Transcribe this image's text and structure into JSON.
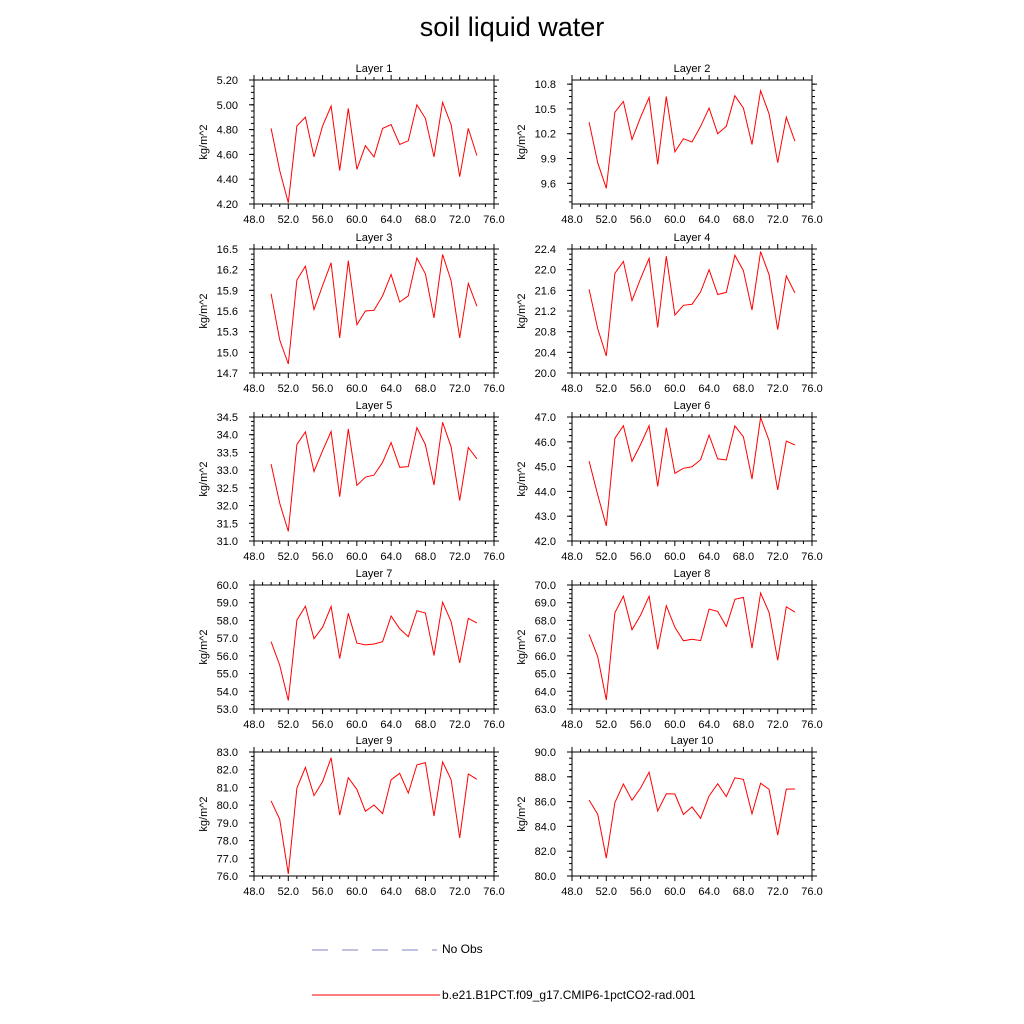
{
  "title": "soil liquid water",
  "legend": [
    {
      "label": "No Obs",
      "color": "#8080c0",
      "style": "dashed"
    },
    {
      "label": "b.e21.B1PCT.f09_g17.CMIP6-1pctCO2-rad.001",
      "color": "#ff0000",
      "style": "solid"
    }
  ],
  "chart_data": [
    {
      "type": "line",
      "title": "Layer 1",
      "ylabel": "kg/m^2",
      "xlim": [
        48,
        76
      ],
      "xticks": [
        "48.0",
        "52.0",
        "56.0",
        "60.0",
        "64.0",
        "68.0",
        "72.0",
        "76.0"
      ],
      "ylim": [
        4.2,
        5.2
      ],
      "yticks": [
        "4.20",
        "4.40",
        "4.60",
        "4.80",
        "5.00",
        "5.20"
      ],
      "x": [
        50,
        51,
        52,
        53,
        54,
        55,
        56,
        57,
        58,
        59,
        60,
        61,
        62,
        63,
        64,
        65,
        66,
        67,
        68,
        69,
        70,
        71,
        72,
        73,
        74
      ],
      "series": [
        {
          "name": "b.e21.B1PCT.f09_g17.CMIP6-1pctCO2-rad.001",
          "values": [
            4.81,
            4.47,
            4.21,
            4.83,
            4.9,
            4.58,
            4.83,
            4.99,
            4.47,
            4.97,
            4.48,
            4.67,
            4.58,
            4.81,
            4.84,
            4.68,
            4.71,
            5.0,
            4.89,
            4.58,
            5.02,
            4.84,
            4.42,
            4.81,
            4.59
          ]
        }
      ]
    },
    {
      "type": "line",
      "title": "Layer 2",
      "ylabel": "kg/m^2",
      "xlim": [
        48,
        76
      ],
      "xticks": [
        "48.0",
        "52.0",
        "56.0",
        "60.0",
        "64.0",
        "68.0",
        "72.0",
        "76.0"
      ],
      "ylim": [
        9.35,
        10.85
      ],
      "yticks": [
        "9.6",
        "9.9",
        "10.2",
        "10.5",
        "10.8"
      ],
      "x": [
        50,
        51,
        52,
        53,
        54,
        55,
        56,
        57,
        58,
        59,
        60,
        61,
        62,
        63,
        64,
        65,
        66,
        67,
        68,
        69,
        70,
        71,
        72,
        73,
        74
      ],
      "series": [
        {
          "name": "b.e21.B1PCT.f09_g17.CMIP6-1pctCO2-rad.001",
          "values": [
            10.34,
            9.85,
            9.54,
            10.46,
            10.59,
            10.13,
            10.4,
            10.64,
            9.83,
            10.65,
            9.98,
            10.14,
            10.1,
            10.29,
            10.51,
            10.2,
            10.29,
            10.66,
            10.51,
            10.07,
            10.72,
            10.44,
            9.85,
            10.4,
            10.11
          ]
        }
      ]
    },
    {
      "type": "line",
      "title": "Layer 3",
      "ylabel": "kg/m^2",
      "xlim": [
        48,
        76
      ],
      "xticks": [
        "48.0",
        "52.0",
        "56.0",
        "60.0",
        "64.0",
        "68.0",
        "72.0",
        "76.0"
      ],
      "ylim": [
        14.7,
        16.5
      ],
      "yticks": [
        "14.7",
        "15.0",
        "15.3",
        "15.6",
        "15.9",
        "16.2",
        "16.5"
      ],
      "x": [
        50,
        51,
        52,
        53,
        54,
        55,
        56,
        57,
        58,
        59,
        60,
        61,
        62,
        63,
        64,
        65,
        66,
        67,
        68,
        69,
        70,
        71,
        72,
        73,
        74
      ],
      "series": [
        {
          "name": "b.e21.B1PCT.f09_g17.CMIP6-1pctCO2-rad.001",
          "values": [
            15.85,
            15.18,
            14.83,
            16.05,
            16.25,
            15.62,
            15.97,
            16.3,
            15.21,
            16.33,
            15.4,
            15.6,
            15.61,
            15.82,
            16.13,
            15.73,
            15.82,
            16.37,
            16.14,
            15.5,
            16.42,
            16.04,
            15.21,
            16.0,
            15.67
          ]
        }
      ]
    },
    {
      "type": "line",
      "title": "Layer 4",
      "ylabel": "kg/m^2",
      "xlim": [
        48,
        76
      ],
      "xticks": [
        "48.0",
        "52.0",
        "56.0",
        "60.0",
        "64.0",
        "68.0",
        "72.0",
        "76.0"
      ],
      "ylim": [
        20.0,
        22.4
      ],
      "yticks": [
        "20.0",
        "20.4",
        "20.8",
        "21.2",
        "21.6",
        "22.0",
        "22.4"
      ],
      "x": [
        50,
        51,
        52,
        53,
        54,
        55,
        56,
        57,
        58,
        59,
        60,
        61,
        62,
        63,
        64,
        65,
        66,
        67,
        68,
        69,
        70,
        71,
        72,
        73,
        74
      ],
      "series": [
        {
          "name": "b.e21.B1PCT.f09_g17.CMIP6-1pctCO2-rad.001",
          "values": [
            21.62,
            20.86,
            20.33,
            21.93,
            22.16,
            21.4,
            21.83,
            22.22,
            20.88,
            22.26,
            21.12,
            21.31,
            21.33,
            21.57,
            22.0,
            21.52,
            21.56,
            22.28,
            21.98,
            21.22,
            22.35,
            21.9,
            20.84,
            21.88,
            21.55
          ]
        }
      ]
    },
    {
      "type": "line",
      "title": "Layer 5",
      "ylabel": "kg/m^2",
      "xlim": [
        48,
        76
      ],
      "xticks": [
        "48.0",
        "52.0",
        "56.0",
        "60.0",
        "64.0",
        "68.0",
        "72.0",
        "76.0"
      ],
      "ylim": [
        31.0,
        34.5
      ],
      "yticks": [
        "31.0",
        "31.5",
        "32.0",
        "32.5",
        "33.0",
        "33.5",
        "34.0",
        "34.5"
      ],
      "x": [
        50,
        51,
        52,
        53,
        54,
        55,
        56,
        57,
        58,
        59,
        60,
        61,
        62,
        63,
        64,
        65,
        66,
        67,
        68,
        69,
        70,
        71,
        72,
        73,
        74
      ],
      "series": [
        {
          "name": "b.e21.B1PCT.f09_g17.CMIP6-1pctCO2-rad.001",
          "values": [
            33.17,
            32.07,
            31.27,
            33.72,
            34.08,
            32.96,
            33.55,
            34.09,
            32.25,
            34.16,
            32.57,
            32.8,
            32.86,
            33.22,
            33.78,
            33.08,
            33.1,
            34.2,
            33.72,
            32.58,
            34.35,
            33.66,
            32.14,
            33.64,
            33.32
          ]
        }
      ]
    },
    {
      "type": "line",
      "title": "Layer 6",
      "ylabel": "kg/m^2",
      "xlim": [
        48,
        76
      ],
      "xticks": [
        "48.0",
        "52.0",
        "56.0",
        "60.0",
        "64.0",
        "68.0",
        "72.0",
        "76.0"
      ],
      "ylim": [
        42.0,
        47.0
      ],
      "yticks": [
        "42.0",
        "43.0",
        "44.0",
        "45.0",
        "46.0",
        "47.0"
      ],
      "x": [
        50,
        51,
        52,
        53,
        54,
        55,
        56,
        57,
        58,
        59,
        60,
        61,
        62,
        63,
        64,
        65,
        66,
        67,
        68,
        69,
        70,
        71,
        72,
        73,
        74
      ],
      "series": [
        {
          "name": "b.e21.B1PCT.f09_g17.CMIP6-1pctCO2-rad.001",
          "values": [
            45.22,
            43.86,
            42.61,
            46.14,
            46.65,
            45.21,
            45.89,
            46.65,
            44.2,
            46.57,
            44.73,
            44.93,
            44.99,
            45.28,
            46.27,
            45.31,
            45.27,
            46.64,
            46.2,
            44.5,
            46.98,
            46.05,
            44.06,
            46.03,
            45.87
          ]
        }
      ]
    },
    {
      "type": "line",
      "title": "Layer 7",
      "ylabel": "kg/m^2",
      "xlim": [
        48,
        76
      ],
      "xticks": [
        "48.0",
        "52.0",
        "56.0",
        "60.0",
        "64.0",
        "68.0",
        "72.0",
        "76.0"
      ],
      "ylim": [
        53.0,
        60.0
      ],
      "yticks": [
        "53.0",
        "54.0",
        "55.0",
        "56.0",
        "57.0",
        "58.0",
        "59.0",
        "60.0"
      ],
      "x": [
        50,
        51,
        52,
        53,
        54,
        55,
        56,
        57,
        58,
        59,
        60,
        61,
        62,
        63,
        64,
        65,
        66,
        67,
        68,
        69,
        70,
        71,
        72,
        73,
        74
      ],
      "series": [
        {
          "name": "b.e21.B1PCT.f09_g17.CMIP6-1pctCO2-rad.001",
          "values": [
            56.8,
            55.48,
            53.48,
            58.02,
            58.8,
            56.97,
            57.62,
            58.79,
            55.85,
            58.4,
            56.72,
            56.62,
            56.67,
            56.8,
            58.25,
            57.53,
            57.08,
            58.55,
            58.42,
            56.02,
            59.03,
            57.94,
            55.6,
            58.12,
            57.85
          ]
        }
      ]
    },
    {
      "type": "line",
      "title": "Layer 8",
      "ylabel": "kg/m^2",
      "xlim": [
        48,
        76
      ],
      "xticks": [
        "48.0",
        "52.0",
        "56.0",
        "60.0",
        "64.0",
        "68.0",
        "72.0",
        "76.0"
      ],
      "ylim": [
        63.0,
        70.0
      ],
      "yticks": [
        "63.0",
        "64.0",
        "65.0",
        "66.0",
        "67.0",
        "68.0",
        "69.0",
        "70.0"
      ],
      "x": [
        50,
        51,
        52,
        53,
        54,
        55,
        56,
        57,
        58,
        59,
        60,
        61,
        62,
        63,
        64,
        65,
        66,
        67,
        68,
        69,
        70,
        71,
        72,
        73,
        74
      ],
      "series": [
        {
          "name": "b.e21.B1PCT.f09_g17.CMIP6-1pctCO2-rad.001",
          "values": [
            67.21,
            65.96,
            63.51,
            68.43,
            69.37,
            67.47,
            68.3,
            69.37,
            66.37,
            68.83,
            67.61,
            66.85,
            66.94,
            66.86,
            68.64,
            68.51,
            67.66,
            69.19,
            69.3,
            66.43,
            69.55,
            68.45,
            65.75,
            68.77,
            68.47
          ]
        }
      ]
    },
    {
      "type": "line",
      "title": "Layer 9",
      "ylabel": "kg/m^2",
      "xlim": [
        48,
        76
      ],
      "xticks": [
        "48.0",
        "52.0",
        "56.0",
        "60.0",
        "64.0",
        "68.0",
        "72.0",
        "76.0"
      ],
      "ylim": [
        76.0,
        83.0
      ],
      "yticks": [
        "76.0",
        "77.0",
        "78.0",
        "79.0",
        "80.0",
        "81.0",
        "82.0",
        "83.0"
      ],
      "x": [
        50,
        51,
        52,
        53,
        54,
        55,
        56,
        57,
        58,
        59,
        60,
        61,
        62,
        63,
        64,
        65,
        66,
        67,
        68,
        69,
        70,
        71,
        72,
        73,
        74
      ],
      "series": [
        {
          "name": "b.e21.B1PCT.f09_g17.CMIP6-1pctCO2-rad.001",
          "values": [
            80.24,
            79.2,
            76.12,
            80.96,
            82.13,
            80.54,
            81.33,
            82.67,
            79.44,
            81.55,
            80.89,
            79.65,
            80.01,
            79.52,
            81.43,
            81.8,
            80.68,
            82.27,
            82.4,
            79.38,
            82.44,
            81.44,
            78.15,
            81.76,
            81.46
          ]
        }
      ]
    },
    {
      "type": "line",
      "title": "Layer 10",
      "ylabel": "kg/m^2",
      "xlim": [
        48,
        76
      ],
      "xticks": [
        "48.0",
        "52.0",
        "56.0",
        "60.0",
        "64.0",
        "68.0",
        "72.0",
        "76.0"
      ],
      "ylim": [
        80.0,
        90.0
      ],
      "yticks": [
        "80.0",
        "82.0",
        "84.0",
        "86.0",
        "88.0",
        "90.0"
      ],
      "x": [
        50,
        51,
        52,
        53,
        54,
        55,
        56,
        57,
        58,
        59,
        60,
        61,
        62,
        63,
        64,
        65,
        66,
        67,
        68,
        69,
        70,
        71,
        72,
        73,
        74
      ],
      "series": [
        {
          "name": "b.e21.B1PCT.f09_g17.CMIP6-1pctCO2-rad.001",
          "values": [
            86.12,
            84.98,
            81.44,
            85.92,
            87.42,
            86.11,
            87.1,
            88.37,
            85.24,
            86.63,
            86.61,
            84.96,
            85.57,
            84.65,
            86.45,
            87.44,
            86.4,
            87.92,
            87.79,
            85.02,
            87.48,
            86.98,
            83.3,
            87.01,
            87.02
          ]
        }
      ]
    }
  ]
}
